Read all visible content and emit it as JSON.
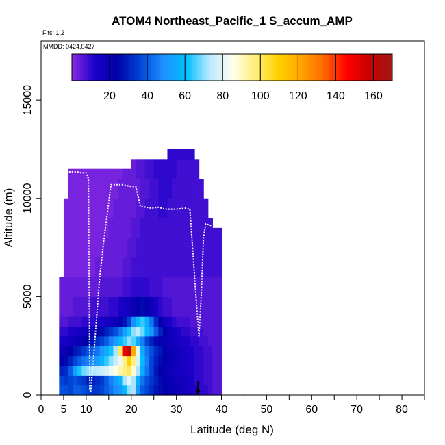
{
  "chart_data": {
    "type": "heatmap",
    "title": "ATOM4 Northeast_Pacific_1 S_accum_AMP",
    "flights_label": "Flts: 1,2",
    "dates_label": "MMDD: 0424,0427",
    "xlabel": "Latitude (deg N)",
    "ylabel": "Altitude (m)",
    "xlim": [
      0,
      85
    ],
    "ylim": [
      0,
      18000
    ],
    "xticks": [
      0,
      5,
      10,
      20,
      30,
      40,
      50,
      60,
      70,
      80
    ],
    "xticks_label": [
      "0",
      "5",
      "10",
      "20",
      "30",
      "40",
      "50",
      "60",
      "70",
      "80"
    ],
    "xticks_minor": [
      0,
      5,
      10,
      15,
      20,
      25,
      30,
      35,
      40,
      45,
      50,
      55,
      60,
      65,
      70,
      75,
      80,
      85
    ],
    "yticks": [
      0,
      5000,
      10000,
      15000
    ],
    "yticks_label": [
      "0",
      "5000",
      "10000",
      "15000"
    ],
    "colorbar": {
      "min": 0,
      "max": 170,
      "ticks": [
        20,
        40,
        60,
        80,
        100,
        120,
        140,
        160
      ],
      "tick_labels": [
        "20",
        "40",
        "60",
        "80",
        "100",
        "120",
        "140",
        "160"
      ],
      "colors": [
        "#8a2be2",
        "#1a00c8",
        "#0000a8",
        "#0046d8",
        "#1e90ff",
        "#00bfff",
        "#b8e8ff",
        "#fffff0",
        "#fff07a",
        "#ffd200",
        "#ffa500",
        "#ff6a00",
        "#ff0000",
        "#c80000",
        "#a01818"
      ]
    },
    "curtain": {
      "lat_bins": [
        4,
        5,
        6,
        7,
        8,
        9,
        10,
        11,
        12,
        13,
        14,
        15,
        16,
        17,
        18,
        19,
        20,
        21,
        22,
        23,
        24,
        25,
        26,
        27,
        28,
        29,
        30,
        31,
        32,
        33,
        34,
        35,
        36,
        37,
        38,
        39
      ],
      "alt_bins": [
        0,
        500,
        1000,
        1500,
        2000,
        2500,
        3000,
        3500,
        4000,
        5000,
        6000,
        7000,
        8000,
        9000,
        10000,
        11000,
        12000
      ],
      "top_alt": [
        6000,
        10000,
        11500,
        11500,
        11500,
        11500,
        11500,
        11500,
        11500,
        11500,
        11500,
        11500,
        11500,
        11500,
        11500,
        11500,
        12000,
        12000,
        12000,
        12000,
        12000,
        12000,
        12000,
        12000,
        12500,
        12500,
        12500,
        12500,
        12500,
        12500,
        12000,
        11000,
        10000,
        9000,
        8500,
        8500
      ],
      "values": [
        [
          38,
          38,
          36,
          40,
          40,
          38,
          36,
          34,
          34,
          36,
          40,
          44,
          48,
          50,
          60,
          70,
          72,
          50,
          40,
          36,
          32,
          28,
          26,
          24,
          20,
          20,
          18,
          16,
          14,
          14,
          12,
          10,
          10,
          8,
          6,
          6
        ],
        [
          36,
          34,
          36,
          38,
          36,
          34,
          30,
          30,
          32,
          34,
          40,
          46,
          52,
          58,
          72,
          80,
          72,
          56,
          44,
          38,
          34,
          30,
          26,
          22,
          20,
          18,
          16,
          16,
          14,
          12,
          10,
          10,
          8,
          8,
          6,
          6
        ],
        [
          30,
          32,
          40,
          52,
          62,
          68,
          70,
          72,
          74,
          76,
          78,
          82,
          86,
          92,
          96,
          100,
          88,
          72,
          56,
          44,
          36,
          28,
          24,
          22,
          18,
          16,
          14,
          14,
          12,
          12,
          10,
          10,
          8,
          8,
          6,
          6
        ],
        [
          24,
          26,
          30,
          36,
          40,
          44,
          46,
          48,
          52,
          58,
          64,
          70,
          76,
          82,
          96,
          110,
          96,
          78,
          60,
          46,
          36,
          30,
          26,
          22,
          20,
          18,
          16,
          14,
          12,
          12,
          10,
          10,
          8,
          8,
          6,
          6
        ],
        [
          18,
          20,
          24,
          28,
          30,
          34,
          38,
          40,
          44,
          50,
          56,
          62,
          72,
          100,
          150,
          160,
          120,
          80,
          56,
          44,
          38,
          32,
          28,
          24,
          20,
          18,
          16,
          14,
          12,
          12,
          10,
          10,
          8,
          8,
          6,
          6
        ],
        [
          14,
          14,
          16,
          18,
          20,
          22,
          24,
          28,
          32,
          36,
          40,
          46,
          52,
          58,
          64,
          70,
          66,
          56,
          46,
          36,
          30,
          26,
          22,
          20,
          18,
          16,
          14,
          12,
          12,
          10,
          10,
          8,
          8,
          6,
          6,
          6
        ],
        [
          10,
          10,
          12,
          12,
          14,
          16,
          18,
          20,
          22,
          26,
          30,
          34,
          38,
          44,
          52,
          62,
          70,
          74,
          68,
          60,
          50,
          40,
          30,
          24,
          18,
          14,
          12,
          10,
          10,
          8,
          8,
          8,
          6,
          6,
          6,
          6
        ],
        [
          6,
          6,
          8,
          8,
          8,
          10,
          10,
          10,
          12,
          12,
          14,
          16,
          18,
          22,
          28,
          36,
          48,
          60,
          64,
          56,
          44,
          32,
          22,
          16,
          12,
          10,
          8,
          8,
          8,
          6,
          6,
          6,
          6,
          6,
          6,
          6
        ],
        [
          4,
          4,
          4,
          6,
          6,
          6,
          6,
          8,
          8,
          8,
          8,
          10,
          10,
          12,
          14,
          16,
          20,
          24,
          26,
          22,
          18,
          14,
          10,
          8,
          8,
          6,
          6,
          6,
          6,
          6,
          6,
          6,
          6,
          6,
          6,
          6
        ],
        [
          4,
          4,
          4,
          4,
          4,
          4,
          4,
          4,
          4,
          6,
          6,
          6,
          6,
          6,
          8,
          8,
          10,
          10,
          10,
          10,
          8,
          8,
          8,
          6,
          6,
          6,
          6,
          6,
          6,
          6,
          6,
          6,
          6,
          6,
          6,
          6
        ],
        [
          2,
          2,
          2,
          2,
          2,
          2,
          2,
          2,
          4,
          4,
          4,
          4,
          4,
          4,
          6,
          6,
          8,
          8,
          8,
          8,
          8,
          8,
          8,
          8,
          8,
          8,
          8,
          8,
          8,
          8,
          8,
          8,
          8,
          8,
          8,
          8
        ],
        [
          2,
          2,
          2,
          2,
          2,
          2,
          2,
          2,
          2,
          2,
          4,
          4,
          4,
          4,
          4,
          6,
          6,
          8,
          8,
          8,
          8,
          8,
          8,
          8,
          8,
          8,
          8,
          8,
          8,
          8,
          8,
          8,
          8,
          8,
          8,
          8
        ],
        [
          2,
          2,
          2,
          2,
          2,
          2,
          2,
          2,
          2,
          2,
          2,
          4,
          4,
          4,
          4,
          4,
          6,
          6,
          8,
          8,
          8,
          8,
          8,
          8,
          8,
          8,
          8,
          8,
          8,
          8,
          8,
          8,
          8,
          8,
          8,
          8
        ],
        [
          2,
          2,
          2,
          2,
          2,
          2,
          2,
          2,
          2,
          2,
          2,
          2,
          4,
          4,
          4,
          4,
          4,
          6,
          6,
          8,
          8,
          8,
          10,
          10,
          8,
          8,
          8,
          8,
          8,
          8,
          8,
          8,
          8,
          8,
          8,
          8
        ],
        [
          2,
          2,
          2,
          2,
          2,
          2,
          2,
          2,
          2,
          2,
          2,
          2,
          2,
          4,
          4,
          4,
          4,
          4,
          6,
          6,
          8,
          8,
          10,
          10,
          10,
          8,
          8,
          8,
          8,
          8,
          8,
          8,
          8,
          8,
          8,
          8
        ],
        [
          2,
          2,
          2,
          2,
          2,
          2,
          2,
          2,
          2,
          2,
          2,
          2,
          2,
          2,
          4,
          4,
          4,
          6,
          6,
          8,
          8,
          10,
          10,
          10,
          10,
          10,
          8,
          8,
          8,
          8,
          8,
          8,
          8,
          8,
          8,
          8
        ],
        [
          2,
          2,
          2,
          2,
          2,
          2,
          2,
          2,
          2,
          2,
          2,
          2,
          2,
          2,
          2,
          4,
          6,
          8,
          10,
          10,
          10,
          10,
          10,
          10,
          10,
          10,
          10,
          10,
          10,
          10,
          10,
          10,
          8,
          8,
          8,
          8
        ]
      ]
    },
    "flight_track": [
      [
        5,
        11300
      ],
      [
        6,
        11350
      ],
      [
        8,
        11350
      ],
      [
        9,
        11300
      ],
      [
        10,
        11300
      ],
      [
        10.5,
        11000
      ],
      [
        10.8,
        300
      ],
      [
        11,
        200
      ],
      [
        11.5,
        1500
      ],
      [
        13,
        6000
      ],
      [
        14,
        8000
      ],
      [
        15.5,
        10700
      ],
      [
        18,
        10700
      ],
      [
        19,
        10650
      ],
      [
        20,
        10600
      ],
      [
        21,
        10600
      ],
      [
        22,
        9600
      ],
      [
        24.5,
        9500
      ],
      [
        26,
        9550
      ],
      [
        27.5,
        9450
      ],
      [
        30,
        9450
      ],
      [
        32,
        9500
      ],
      [
        33,
        9450
      ],
      [
        34.5,
        4500
      ],
      [
        35,
        3000
      ],
      [
        35.5,
        5000
      ],
      [
        36,
        8000
      ],
      [
        36.5,
        8700
      ],
      [
        38,
        8600
      ]
    ],
    "marker_lat": 34.8
  }
}
